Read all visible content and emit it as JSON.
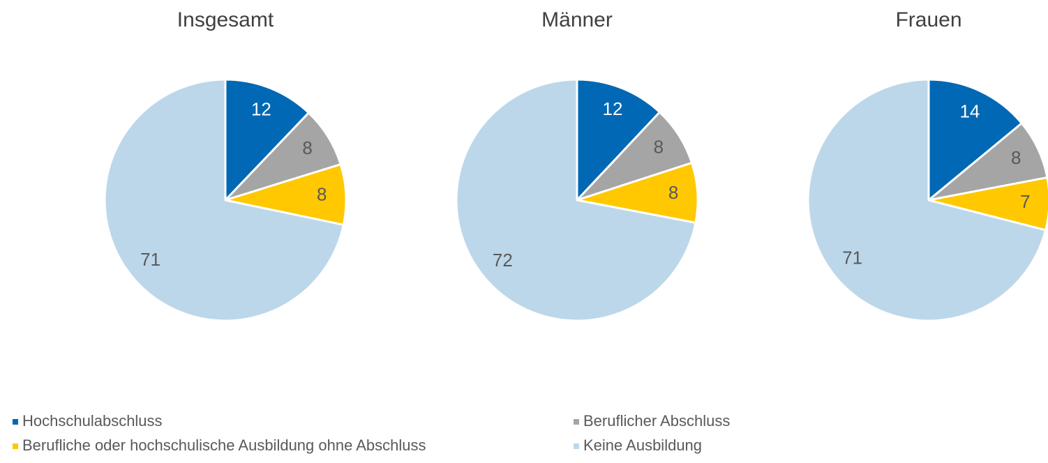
{
  "chart_data": [
    {
      "type": "pie",
      "title": "Insgesamt",
      "values": [
        12,
        8,
        8,
        71
      ]
    },
    {
      "type": "pie",
      "title": "Männer",
      "values": [
        12,
        8,
        8,
        72
      ]
    },
    {
      "type": "pie",
      "title": "Frauen",
      "values": [
        14,
        8,
        7,
        71
      ]
    }
  ],
  "legend": {
    "categories": [
      "Hochschulabschluss",
      "Beruflicher Abschluss",
      "Berufliche oder hochschulische Ausbildung ohne Abschluss",
      "Keine Ausbildung"
    ],
    "colors": [
      "#0068b4",
      "#a5a5a5",
      "#ffc800",
      "#bdd7ea"
    ]
  }
}
